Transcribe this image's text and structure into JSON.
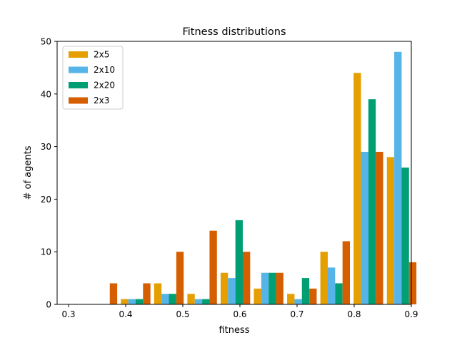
{
  "chart_data": {
    "type": "bar",
    "title": "Fitness distributions",
    "xlabel": "fitness",
    "ylabel": "# of agents",
    "xlim": [
      0.28,
      0.9
    ],
    "ylim": [
      0,
      50
    ],
    "xticks": [
      0.3,
      0.4,
      0.5,
      0.6,
      0.7,
      0.8,
      0.9
    ],
    "xtick_labels": [
      "0.3",
      "0.4",
      "0.5",
      "0.6",
      "0.7",
      "0.8",
      "0.9"
    ],
    "yticks": [
      0,
      10,
      20,
      30,
      40,
      50
    ],
    "ytick_labels": [
      "0",
      "10",
      "20",
      "30",
      "40",
      "50"
    ],
    "grid": false,
    "legend_position": "top-left",
    "bin_edges": [
      0.3334,
      0.3916,
      0.4498,
      0.508,
      0.5662,
      0.6244,
      0.6826,
      0.7408,
      0.799,
      0.8572
    ],
    "bin_width": 0.0582,
    "series": [
      {
        "name": "2x5",
        "color": "#E69F00",
        "values": [
          0,
          1,
          4,
          2,
          6,
          3,
          2,
          10,
          44,
          28
        ]
      },
      {
        "name": "2x10",
        "color": "#56B4E9",
        "values": [
          0,
          1,
          2,
          1,
          5,
          6,
          1,
          7,
          29,
          48
        ]
      },
      {
        "name": "2x20",
        "color": "#009E73",
        "values": [
          0,
          1,
          2,
          1,
          16,
          6,
          5,
          4,
          39,
          26
        ]
      },
      {
        "name": "2x3",
        "color": "#D55E00",
        "values": [
          4,
          4,
          10,
          14,
          10,
          6,
          3,
          12,
          29,
          8
        ]
      }
    ]
  }
}
